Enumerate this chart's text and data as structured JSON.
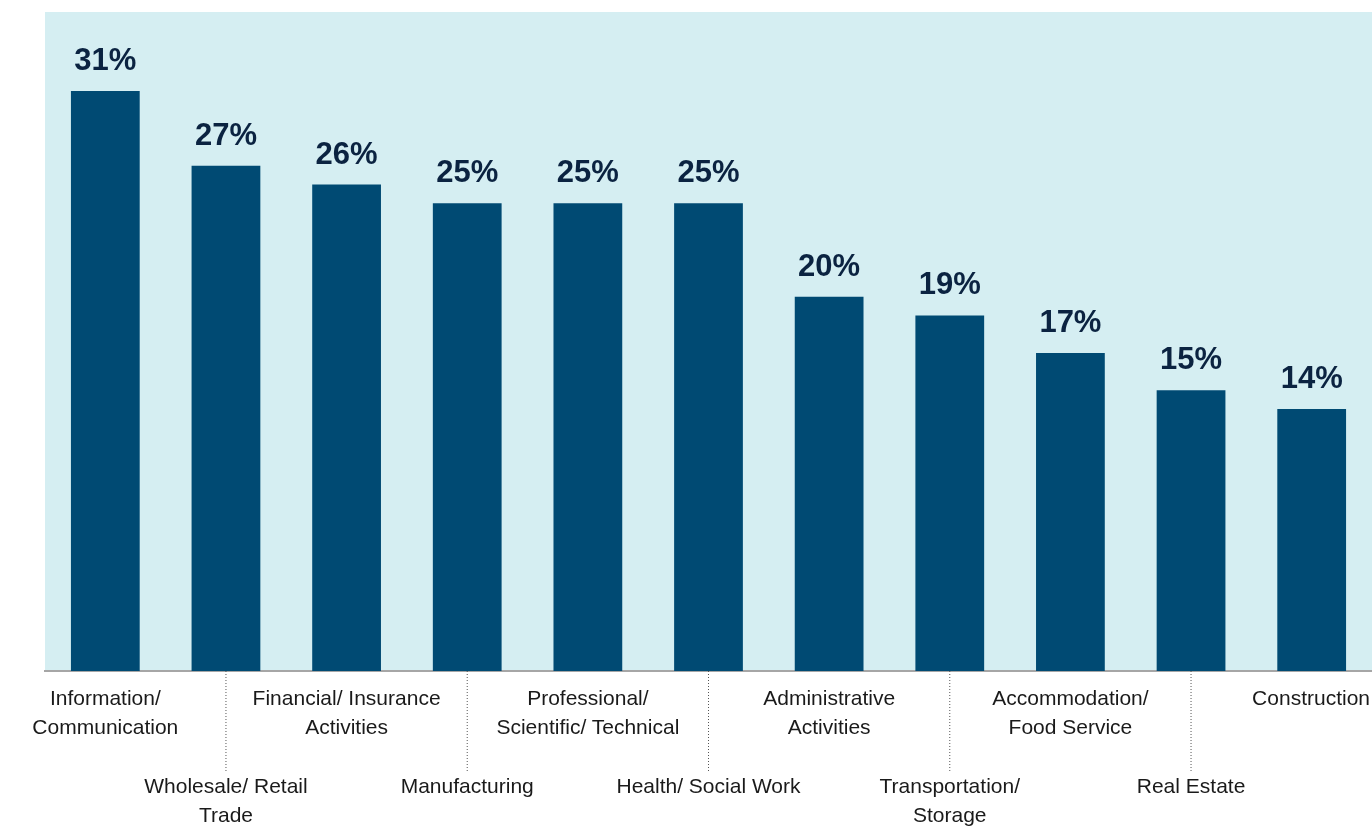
{
  "chart_data": {
    "type": "bar",
    "categories": [
      "Information/ Communication",
      "Wholesale/ Retail Trade",
      "Financial/ Insurance Activities",
      "Manufacturing",
      "Professional/ Scientific/ Technical",
      "Health/ Social Work",
      "Administrative Activities",
      "Transportation/ Storage",
      "Accommodation/ Food Service",
      "Real Estate",
      "Construction"
    ],
    "values": [
      31,
      27,
      26,
      25,
      25,
      25,
      20,
      19,
      17,
      15,
      14
    ],
    "value_labels": [
      "31%",
      "27%",
      "26%",
      "25%",
      "25%",
      "25%",
      "20%",
      "19%",
      "17%",
      "15%",
      "14%"
    ],
    "color": "#004a73",
    "grid": false,
    "legend": false
  }
}
